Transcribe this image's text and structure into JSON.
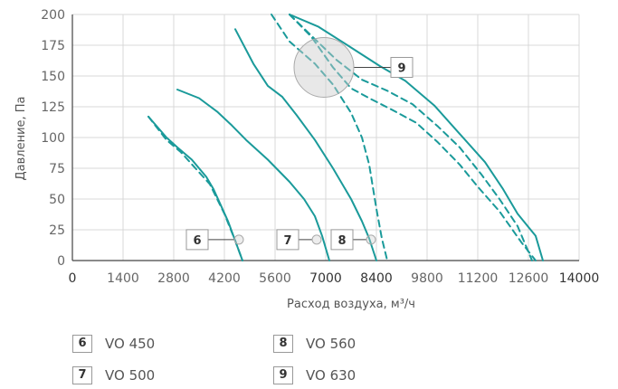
{
  "chart_data": {
    "type": "line",
    "title": "",
    "xlabel": "Расход воздуха, м³/ч",
    "ylabel": "Давление, Па",
    "xlim": [
      0,
      14000
    ],
    "ylim": [
      0,
      200
    ],
    "x_ticks": [
      "0",
      "1400",
      "2800",
      "4200",
      "5600",
      "7000",
      "8400",
      "9800",
      "11200",
      "12600",
      "14000"
    ],
    "y_ticks": [
      "0",
      "25",
      "50",
      "75",
      "100",
      "125",
      "150",
      "175",
      "200"
    ],
    "grid": true,
    "colors": {
      "curve": "#1a9a9a",
      "grid": "#d9d9d9",
      "axis": "#444444",
      "marker": "#cccccc"
    },
    "series": [
      {
        "tag": "6",
        "style": "solid",
        "points": [
          [
            2100,
            117
          ],
          [
            2600,
            100
          ],
          [
            2900,
            92
          ],
          [
            3300,
            82
          ],
          [
            3700,
            68
          ],
          [
            3900,
            58
          ],
          [
            4100,
            45
          ],
          [
            4300,
            32
          ],
          [
            4450,
            20
          ],
          [
            4550,
            12
          ],
          [
            4700,
            0
          ]
        ]
      },
      {
        "tag": "6",
        "style": "dashed",
        "points": [
          [
            2100,
            117
          ],
          [
            2600,
            98
          ],
          [
            3000,
            88
          ],
          [
            3400,
            75
          ],
          [
            3800,
            62
          ],
          [
            4000,
            50
          ],
          [
            4200,
            38
          ],
          [
            4350,
            27
          ],
          [
            4500,
            16
          ],
          [
            4650,
            4
          ],
          [
            4700,
            0
          ]
        ]
      },
      {
        "tag": "7",
        "style": "solid",
        "points": [
          [
            2900,
            139
          ],
          [
            3500,
            132
          ],
          [
            4000,
            121
          ],
          [
            4400,
            110
          ],
          [
            4800,
            98
          ],
          [
            5400,
            82
          ],
          [
            6000,
            64
          ],
          [
            6400,
            50
          ],
          [
            6700,
            36
          ],
          [
            6900,
            20
          ],
          [
            7100,
            0
          ]
        ]
      },
      {
        "tag": "8",
        "style": "solid",
        "points": [
          [
            4500,
            188
          ],
          [
            5000,
            160
          ],
          [
            5400,
            142
          ],
          [
            5800,
            133
          ],
          [
            6200,
            118
          ],
          [
            6700,
            98
          ],
          [
            7200,
            75
          ],
          [
            7700,
            50
          ],
          [
            8000,
            32
          ],
          [
            8200,
            18
          ],
          [
            8400,
            0
          ]
        ]
      },
      {
        "tag": "8",
        "style": "dashed",
        "points": [
          [
            5500,
            200
          ],
          [
            6000,
            178
          ],
          [
            6700,
            160
          ],
          [
            7200,
            143
          ],
          [
            7700,
            120
          ],
          [
            8000,
            100
          ],
          [
            8200,
            78
          ],
          [
            8300,
            60
          ],
          [
            8400,
            42
          ],
          [
            8550,
            18
          ],
          [
            8700,
            0
          ]
        ]
      },
      {
        "tag": "9",
        "style": "solid",
        "points": [
          [
            6000,
            200
          ],
          [
            6800,
            190
          ],
          [
            7600,
            175
          ],
          [
            8500,
            158
          ],
          [
            9200,
            146
          ],
          [
            10000,
            126
          ],
          [
            10700,
            103
          ],
          [
            11400,
            80
          ],
          [
            11900,
            58
          ],
          [
            12300,
            38
          ],
          [
            12800,
            20
          ],
          [
            13000,
            0
          ]
        ]
      },
      {
        "tag": "9",
        "style": "dashed",
        "points": [
          [
            6000,
            200
          ],
          [
            6700,
            180
          ],
          [
            7300,
            163
          ],
          [
            8000,
            147
          ],
          [
            8700,
            138
          ],
          [
            9400,
            127
          ],
          [
            10100,
            109
          ],
          [
            10700,
            92
          ],
          [
            11300,
            70
          ],
          [
            11800,
            50
          ],
          [
            12300,
            28
          ],
          [
            12700,
            0
          ]
        ]
      },
      {
        "tag": "9",
        "style": "dashed",
        "points": [
          [
            6000,
            200
          ],
          [
            6600,
            182
          ],
          [
            7200,
            157
          ],
          [
            7700,
            140
          ],
          [
            8200,
            132
          ],
          [
            8800,
            123
          ],
          [
            9500,
            112
          ],
          [
            10100,
            96
          ],
          [
            10700,
            78
          ],
          [
            11200,
            60
          ],
          [
            11800,
            40
          ],
          [
            12400,
            15
          ],
          [
            12800,
            0
          ]
        ]
      }
    ],
    "markers": [
      {
        "tag": "6",
        "x": 4600,
        "y": 17,
        "r": 1,
        "label_x": 3450,
        "label_y": 17
      },
      {
        "tag": "7",
        "x": 6750,
        "y": 17,
        "r": 1,
        "label_x": 5950,
        "label_y": 17
      },
      {
        "tag": "8",
        "x": 8250,
        "y": 17,
        "r": 1,
        "label_x": 7450,
        "label_y": 17
      },
      {
        "tag": "9",
        "x": 6950,
        "y": 157,
        "r": 1,
        "label_x": 9100,
        "label_y": 157
      }
    ]
  },
  "legend": [
    {
      "tag": "6",
      "label": "VO 450"
    },
    {
      "tag": "8",
      "label": "VO 560"
    },
    {
      "tag": "7",
      "label": "VO 500"
    },
    {
      "tag": "9",
      "label": "VO 630"
    }
  ]
}
